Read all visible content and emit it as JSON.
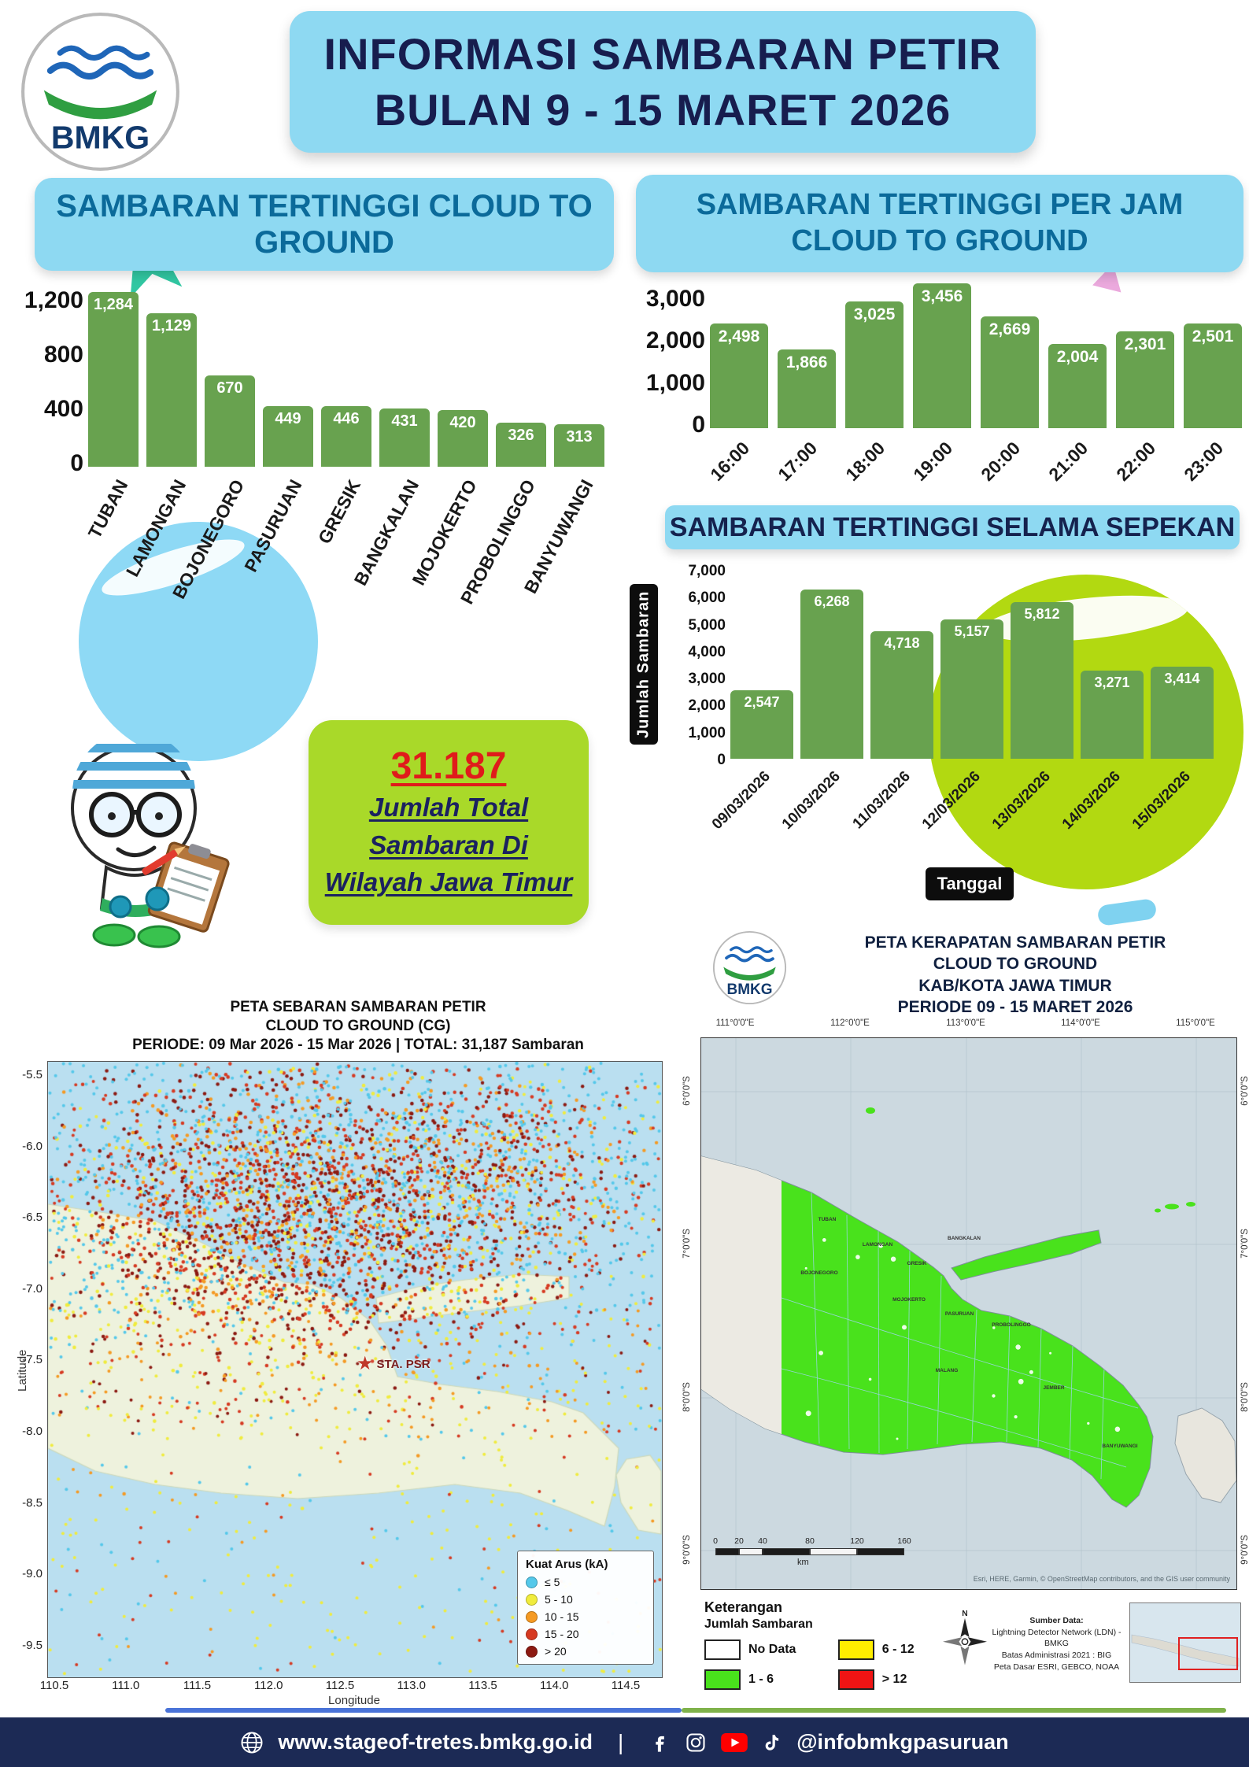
{
  "colors": {
    "panel_blue": "#8ed9f2",
    "navy_text": "#171d4e",
    "chart_bar_green": "#68a24f",
    "badge_green": "#a9d929",
    "total_red": "#e01b1b",
    "footer_navy": "#1c2a55",
    "scatter_sea_blue": "#badff0",
    "density_green": "#49e21c"
  },
  "header": {
    "logo_text": "BMKG",
    "title_line1": "INFORMASI SAMBARAN PETIR",
    "title_line2": "BULAN 9 - 15 MARET 2026"
  },
  "chart_data": [
    {
      "id": "highest-strikes-by-region",
      "type": "bar",
      "title": "SAMBARAN TERTINGGI CLOUD TO GROUND",
      "categories": [
        "TUBAN",
        "LAMONGAN",
        "BOJONEGORO",
        "PASURUAN",
        "GRESIK",
        "BANGKALAN",
        "MOJOKERTO",
        "PROBOLINGGO",
        "BANYUWANGI"
      ],
      "values": [
        1284,
        1129,
        670,
        449,
        446,
        431,
        420,
        326,
        313
      ],
      "value_labels": [
        "1,284",
        "1,129",
        "670",
        "449",
        "446",
        "431",
        "420",
        "326",
        "313"
      ],
      "y_ticks": [
        "1,200",
        "800",
        "400",
        "0"
      ],
      "ymax": 1350,
      "xlabel": "",
      "ylabel": "",
      "bar_color": "#68a24f",
      "legend": "none",
      "grid": "off"
    },
    {
      "id": "highest-strikes-per-hour",
      "type": "bar",
      "title": "SAMBARAN TERTINGGI PER JAM CLOUD TO GROUND",
      "categories": [
        "16:00",
        "17:00",
        "18:00",
        "19:00",
        "20:00",
        "21:00",
        "22:00",
        "23:00"
      ],
      "values": [
        2498,
        1866,
        3025,
        3456,
        2669,
        2004,
        2301,
        2501
      ],
      "value_labels": [
        "2,498",
        "1,866",
        "3,025",
        "3,456",
        "2,669",
        "2,004",
        "2,301",
        "2,501"
      ],
      "y_ticks": [
        "3,000",
        "2,000",
        "1,000",
        "0"
      ],
      "ymax": 3600,
      "xlabel": "",
      "ylabel": "",
      "bar_color": "#68a24f",
      "legend": "none",
      "grid": "off"
    },
    {
      "id": "highest-strikes-per-day",
      "type": "bar",
      "title": "SAMBARAN TERTINGGI SELAMA SEPEKAN",
      "categories": [
        "09/03/2026",
        "10/03/2026",
        "11/03/2026",
        "12/03/2026",
        "13/03/2026",
        "14/03/2026",
        "15/03/2026"
      ],
      "values": [
        2547,
        6268,
        4718,
        5157,
        5812,
        3271,
        3414
      ],
      "value_labels": [
        "2,547",
        "6,268",
        "4,718",
        "5,157",
        "5,812",
        "3,271",
        "3,414"
      ],
      "y_ticks": [
        "7,000",
        "6,000",
        "5,000",
        "4,000",
        "3,000",
        "2,000",
        "1,000",
        "0"
      ],
      "ymax": 7000,
      "xlabel": "Tanggal",
      "ylabel": "Jumlah Sambaran",
      "bar_color": "#68a24f",
      "legend": "none",
      "grid": "off"
    }
  ],
  "total_badge": {
    "number": "31.187",
    "line1": "Jumlah Total",
    "line2": "Sambaran Di",
    "line3": "Wilayah Jawa Timur"
  },
  "scatter_map": {
    "title_line1": "PETA SEBARAN SAMBARAN PETIR",
    "title_line2": "CLOUD TO GROUND (CG)",
    "title_line3": "PERIODE: 09 Mar 2026 - 15 Mar 2026 | TOTAL: 31,187 Sambaran",
    "xlabel": "Longitude",
    "ylabel": "Latitude",
    "x_ticks": [
      "110.5",
      "111.0",
      "111.5",
      "112.0",
      "112.5",
      "113.0",
      "113.5",
      "114.0",
      "114.5"
    ],
    "y_ticks": [
      "-5.5",
      "-6.0",
      "-6.5",
      "-7.0",
      "-7.5",
      "-8.0",
      "-8.5",
      "-9.0",
      "-9.5"
    ],
    "station_label": "STA. PSR",
    "legend_title": "Kuat Arus (kA)",
    "legend_items": [
      {
        "label": "≤ 5",
        "color": "#54c8ea"
      },
      {
        "label": "5 - 10",
        "color": "#f0ec3d"
      },
      {
        "label": "10 - 15",
        "color": "#f59a23"
      },
      {
        "label": "15 - 20",
        "color": "#d63a22"
      },
      {
        "label": "> 20",
        "color": "#8c1a12"
      }
    ]
  },
  "density_map": {
    "logo_text": "BMKG",
    "title_line1": "PETA KERAPATAN SAMBARAN PETIR",
    "title_line2": "CLOUD TO GROUND",
    "title_line3": "KAB/KOTA JAWA TIMUR",
    "title_line4": "PERIODE 09 - 15 MARET 2026",
    "top_ticks": [
      "111°0'0\"E",
      "112°0'0\"E",
      "113°0'0\"E",
      "114°0'0\"E",
      "115°0'0\"E"
    ],
    "side_ticks": [
      "6°0'0\"S",
      "7°0'0\"S",
      "8°0'0\"S",
      "9°0'0\"S"
    ],
    "scale_ticks": [
      "0",
      "20",
      "40",
      "80",
      "120",
      "160"
    ],
    "scale_unit": "km",
    "attribution": "Esri, HERE, Garmin, © OpenStreetMap contributors, and the GIS user community",
    "legend_title1": "Keterangan",
    "legend_title2": "Jumlah Sambaran",
    "legend_items": [
      {
        "label": "No Data",
        "color": "#ffffff"
      },
      {
        "label": "6 - 12",
        "color": "#ffee00"
      },
      {
        "label": "1 - 6",
        "color": "#49e21c"
      },
      {
        "label": "> 12",
        "color": "#f01414"
      }
    ],
    "source_line1": "Sumber Data:",
    "source_line2": "Lightning Detector Network (LDN) - BMKG",
    "source_line3": "Batas Administrasi 2021 : BIG",
    "source_line4": "Peta Dasar ESRI, GEBCO, NOAA",
    "district_labels": [
      "TUBAN",
      "LAMONGAN",
      "GRESIK",
      "BOJONEGORO",
      "MOJOKERTO",
      "PASURUAN",
      "PROBOLINGGO",
      "BANGKALAN",
      "BANYUWANGI",
      "MALANG",
      "JEMBER"
    ]
  },
  "footer": {
    "website": "www.stageof-tretes.bmkg.go.id",
    "separator": "|",
    "handle": "@infobmkgpasuruan"
  }
}
